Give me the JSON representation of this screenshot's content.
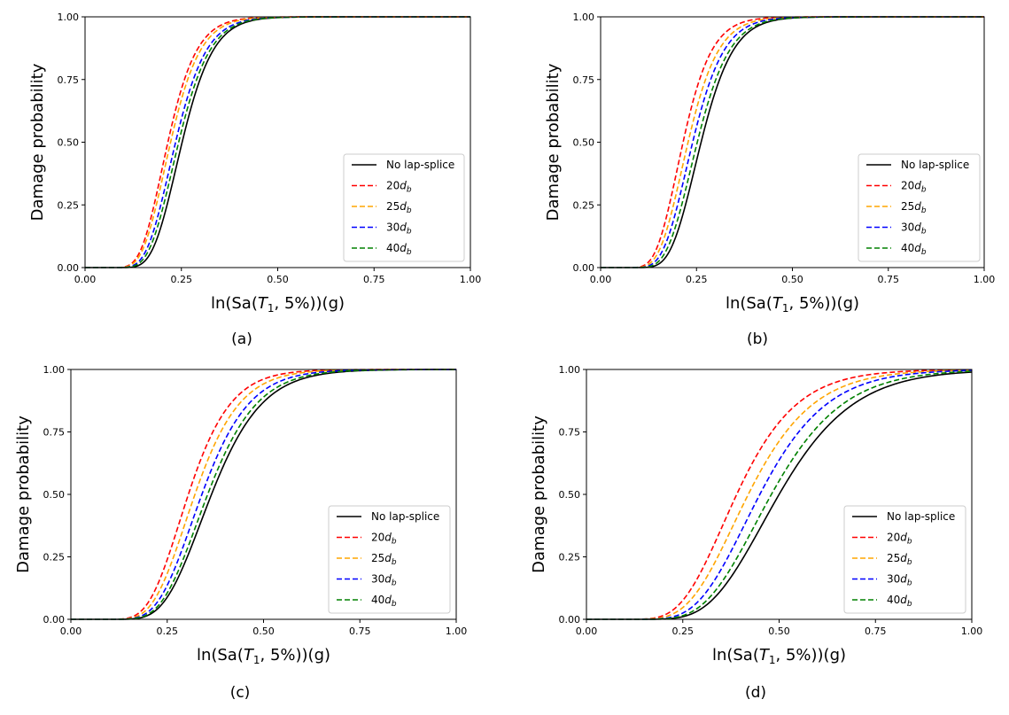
{
  "chart_data": [
    {
      "type": "line",
      "caption": "(a)",
      "xlabel_prefix": "ln(Sa(",
      "xlabel_var": "T",
      "xlabel_sub": "1",
      "xlabel_suffix": ", 5%))(g)",
      "ylabel": "Damage probability",
      "xlim": [
        0,
        1
      ],
      "ylim": [
        0,
        1
      ],
      "x_ticks": [
        "0.00",
        "0.25",
        "0.50",
        "0.75",
        "1.00"
      ],
      "y_ticks": [
        "0.00",
        "0.25",
        "0.50",
        "0.75",
        "1.00"
      ],
      "grid": false,
      "legend_position": "lower-right",
      "series": [
        {
          "name": "No lap-splice",
          "color": "#000000",
          "dash": "solid",
          "median": 0.252,
          "beta": 0.25
        },
        {
          "name_main": "20",
          "name_italic": "d",
          "name_sub": "b",
          "color": "#ff0000",
          "dash": "dashed",
          "median": 0.215,
          "beta": 0.27
        },
        {
          "name_main": "25",
          "name_italic": "d",
          "name_sub": "b",
          "color": "#ffa500",
          "dash": "dashed",
          "median": 0.222,
          "beta": 0.27
        },
        {
          "name_main": "30",
          "name_italic": "d",
          "name_sub": "b",
          "color": "#0000ff",
          "dash": "dashed",
          "median": 0.235,
          "beta": 0.265
        },
        {
          "name_main": "40",
          "name_italic": "d",
          "name_sub": "b",
          "color": "#008000",
          "dash": "dashed",
          "median": 0.243,
          "beta": 0.26
        }
      ]
    },
    {
      "type": "line",
      "caption": "(b)",
      "xlabel_prefix": "ln(Sa(",
      "xlabel_var": "T",
      "xlabel_sub": "1",
      "xlabel_suffix": ", 5%))(g)",
      "ylabel": "Damage probability",
      "xlim": [
        0,
        1
      ],
      "ylim": [
        0,
        1
      ],
      "x_ticks": [
        "0.00",
        "0.25",
        "0.50",
        "0.75",
        "1.00"
      ],
      "y_ticks": [
        "0.00",
        "0.25",
        "0.50",
        "0.75",
        "1.00"
      ],
      "grid": false,
      "legend_position": "lower-right",
      "series": [
        {
          "name": "No lap-splice",
          "color": "#000000",
          "dash": "solid",
          "median": 0.262,
          "beta": 0.25
        },
        {
          "name_main": "20",
          "name_italic": "d",
          "name_sub": "b",
          "color": "#ff0000",
          "dash": "dashed",
          "median": 0.215,
          "beta": 0.27
        },
        {
          "name_main": "25",
          "name_italic": "d",
          "name_sub": "b",
          "color": "#ffa500",
          "dash": "dashed",
          "median": 0.228,
          "beta": 0.27
        },
        {
          "name_main": "30",
          "name_italic": "d",
          "name_sub": "b",
          "color": "#0000ff",
          "dash": "dashed",
          "median": 0.24,
          "beta": 0.265
        },
        {
          "name_main": "40",
          "name_italic": "d",
          "name_sub": "b",
          "color": "#008000",
          "dash": "dashed",
          "median": 0.252,
          "beta": 0.26
        }
      ]
    },
    {
      "type": "line",
      "caption": "(c)",
      "xlabel_prefix": "ln(Sa(",
      "xlabel_var": "T",
      "xlabel_sub": "1",
      "xlabel_suffix": ", 5%))(g)",
      "ylabel": "Damage probability",
      "xlim": [
        0,
        1
      ],
      "ylim": [
        0,
        1
      ],
      "x_ticks": [
        "0.00",
        "0.25",
        "0.50",
        "0.75",
        "1.00"
      ],
      "y_ticks": [
        "0.00",
        "0.25",
        "0.50",
        "0.75",
        "1.00"
      ],
      "grid": false,
      "legend_position": "lower-right",
      "series": [
        {
          "name": "No lap-splice",
          "color": "#000000",
          "dash": "solid",
          "median": 0.365,
          "beta": 0.28
        },
        {
          "name_main": "20",
          "name_italic": "d",
          "name_sub": "b",
          "color": "#ff0000",
          "dash": "dashed",
          "median": 0.305,
          "beta": 0.28
        },
        {
          "name_main": "25",
          "name_italic": "d",
          "name_sub": "b",
          "color": "#ffa500",
          "dash": "dashed",
          "median": 0.322,
          "beta": 0.28
        },
        {
          "name_main": "30",
          "name_italic": "d",
          "name_sub": "b",
          "color": "#0000ff",
          "dash": "dashed",
          "median": 0.34,
          "beta": 0.28
        },
        {
          "name_main": "40",
          "name_italic": "d",
          "name_sub": "b",
          "color": "#008000",
          "dash": "dashed",
          "median": 0.355,
          "beta": 0.28
        }
      ]
    },
    {
      "type": "line",
      "caption": "(d)",
      "xlabel_prefix": "ln(Sa(",
      "xlabel_var": "T",
      "xlabel_sub": "1",
      "xlabel_suffix": ", 5%))(g)",
      "ylabel": "Damage probability",
      "xlim": [
        0,
        1
      ],
      "ylim": [
        0,
        1
      ],
      "x_ticks": [
        "0.00",
        "0.25",
        "0.50",
        "0.75",
        "1.00"
      ],
      "y_ticks": [
        "0.00",
        "0.25",
        "0.50",
        "0.75",
        "1.00"
      ],
      "grid": false,
      "legend_position": "lower-right",
      "series": [
        {
          "name": "No lap-splice",
          "color": "#000000",
          "dash": "solid",
          "median": 0.5,
          "beta": 0.3
        },
        {
          "name_main": "20",
          "name_italic": "d",
          "name_sub": "b",
          "color": "#ff0000",
          "dash": "dashed",
          "median": 0.39,
          "beta": 0.31
        },
        {
          "name_main": "25",
          "name_italic": "d",
          "name_sub": "b",
          "color": "#ffa500",
          "dash": "dashed",
          "median": 0.42,
          "beta": 0.31
        },
        {
          "name_main": "30",
          "name_italic": "d",
          "name_sub": "b",
          "color": "#0000ff",
          "dash": "dashed",
          "median": 0.45,
          "beta": 0.3
        },
        {
          "name_main": "40",
          "name_italic": "d",
          "name_sub": "b",
          "color": "#008000",
          "dash": "dashed",
          "median": 0.48,
          "beta": 0.3
        }
      ]
    }
  ]
}
